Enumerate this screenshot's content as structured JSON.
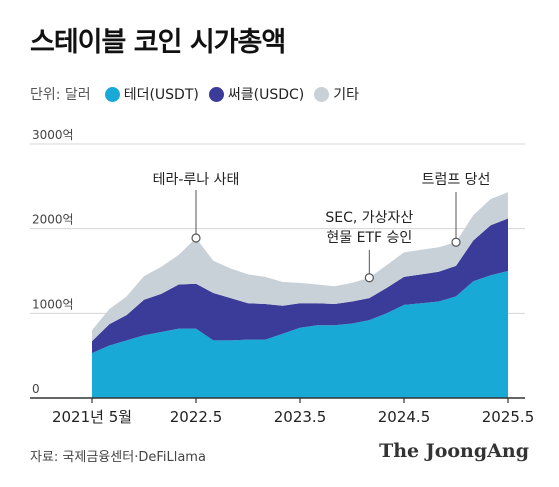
{
  "title": "스테이블 코인 시가총액",
  "legend": {
    "unit": "단위: 달러",
    "items": [
      {
        "label": "테더(USDT)",
        "color": "#19a9d6"
      },
      {
        "label": "써클(USDC)",
        "color": "#3b3b99"
      },
      {
        "label": "기타",
        "color": "#c9d1d8"
      }
    ]
  },
  "source": "자료: 국제금융센터·DeFiLlama",
  "logo": "The JoongAng",
  "chart_data": {
    "type": "area",
    "stacked": true,
    "x_labels": [
      "2021년 5월",
      "2022.5",
      "2023.5",
      "2024.5",
      "2025.5"
    ],
    "y_tick_labels": [
      "0",
      "1000억",
      "2000억",
      "3000억"
    ],
    "ylim": [
      0,
      3000
    ],
    "y_unit": "억 달러",
    "grid": true,
    "x": [
      "2021-05",
      "2021-07",
      "2021-09",
      "2021-11",
      "2022-01",
      "2022-03",
      "2022-05",
      "2022-07",
      "2022-09",
      "2022-11",
      "2023-01",
      "2023-03",
      "2023-05",
      "2023-07",
      "2023-09",
      "2023-11",
      "2024-01",
      "2024-03",
      "2024-05",
      "2024-07",
      "2024-09",
      "2024-11",
      "2025-01",
      "2025-03",
      "2025-05"
    ],
    "series": [
      {
        "name": "테더(USDT)",
        "color": "#19a9d6",
        "values": [
          530,
          620,
          680,
          740,
          780,
          820,
          820,
          680,
          680,
          690,
          690,
          760,
          830,
          860,
          860,
          880,
          920,
          1000,
          1100,
          1120,
          1140,
          1200,
          1380,
          1450,
          1500
        ]
      },
      {
        "name": "써클(USDC)",
        "color": "#3b3b99",
        "values": [
          140,
          250,
          300,
          420,
          450,
          520,
          530,
          560,
          500,
          430,
          420,
          330,
          290,
          260,
          250,
          260,
          260,
          300,
          330,
          340,
          350,
          360,
          480,
          590,
          620
        ]
      },
      {
        "name": "기타",
        "color": "#c9d1d8",
        "values": [
          130,
          180,
          220,
          280,
          320,
          350,
          540,
          380,
          350,
          340,
          320,
          280,
          240,
          220,
          210,
          220,
          240,
          270,
          290,
          290,
          290,
          280,
          300,
          310,
          310
        ]
      }
    ],
    "annotations": [
      {
        "text": "테라-루나 사태",
        "x": "2022-05"
      },
      {
        "text": "SEC, 가상자산",
        "text2": "현물 ETF 승인",
        "x": "2024-01"
      },
      {
        "text": "트럼프 당선",
        "x": "2024-11"
      }
    ]
  }
}
